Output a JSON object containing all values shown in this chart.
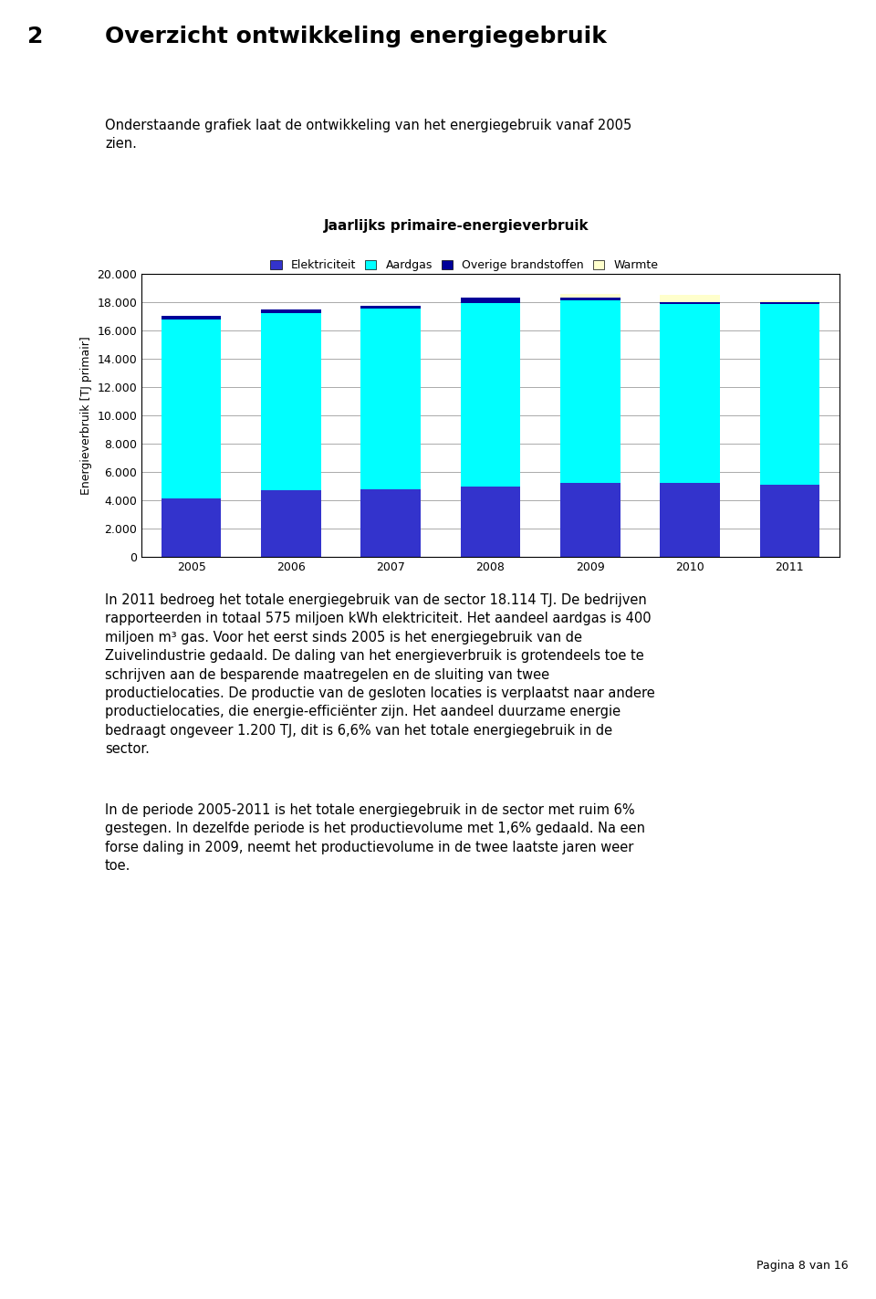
{
  "years": [
    "2005",
    "2006",
    "2007",
    "2008",
    "2009",
    "2010",
    "2011"
  ],
  "elektriciteit": [
    4100,
    4700,
    4800,
    4950,
    5200,
    5200,
    5100
  ],
  "aardgas": [
    12700,
    12500,
    12750,
    13000,
    12950,
    12650,
    12750
  ],
  "overige": [
    200,
    300,
    200,
    350,
    150,
    150,
    150
  ],
  "warmte": [
    0,
    0,
    0,
    0,
    300,
    500,
    114
  ],
  "colors": {
    "elektriciteit": "#3333CC",
    "aardgas": "#00FFFF",
    "overige": "#000099",
    "warmte": "#FFFFCC"
  },
  "title": "Jaarlijks primaire-energieverbruik",
  "ylabel": "Energieverbruik [TJ primair]",
  "legend_labels": [
    "Elektriciteit",
    "Aardgas",
    "Overige brandstoffen",
    "Warmte"
  ],
  "ylim": [
    0,
    20000
  ],
  "yticks": [
    0,
    2000,
    4000,
    6000,
    8000,
    10000,
    12000,
    14000,
    16000,
    18000,
    20000
  ],
  "ytick_labels": [
    "0",
    "2.000",
    "4.000",
    "6.000",
    "8.000",
    "10.000",
    "12.000",
    "14.000",
    "16.000",
    "18.000",
    "20.000"
  ],
  "page_title_num": "2",
  "page_title_text": "Overzicht ontwikkeling energiegebruik",
  "intro_text": "Onderstaande grafiek laat de ontwikkeling van het energiegebruik vanaf 2005\nzien.",
  "body_text": "In 2011 bedroeg het totale energiegebruik van de sector 18.114 TJ. De bedrijven\nrapporteerden in totaal 575 miljoen kWh elektriciteit. Het aandeel aardgas is 400\nmiljoen m³ gas. Voor het eerst sinds 2005 is het energiegebruik van de\nZuivelindustrie gedaald. De daling van het energieverbruik is grotendeels toe te\nschrijven aan de besparende maatregelen en de sluiting van twee\nproductielocaties. De productie van de gesloten locaties is verplaatst naar andere\nproductielocaties, die energie-efficiënter zijn. Het aandeel duurzame energie\nbedraagt ongeveer 1.200 TJ, dit is 6,6% van het totale energiegebruik in de\nsector.",
  "body_text2": "In de periode 2005-2011 is het totale energiegebruik in de sector met ruim 6%\ngestegen. In dezelfde periode is het productievolume met 1,6% gedaald. Na een\nforse daling in 2009, neemt het productievolume in de twee laatste jaren weer\ntoe.",
  "footer_text": "Pagina 8 van 16",
  "background_color": "#FFFFFF",
  "chart_bg_color": "#FFFFFF",
  "grid_color": "#AAAAAA",
  "bar_width": 0.6
}
